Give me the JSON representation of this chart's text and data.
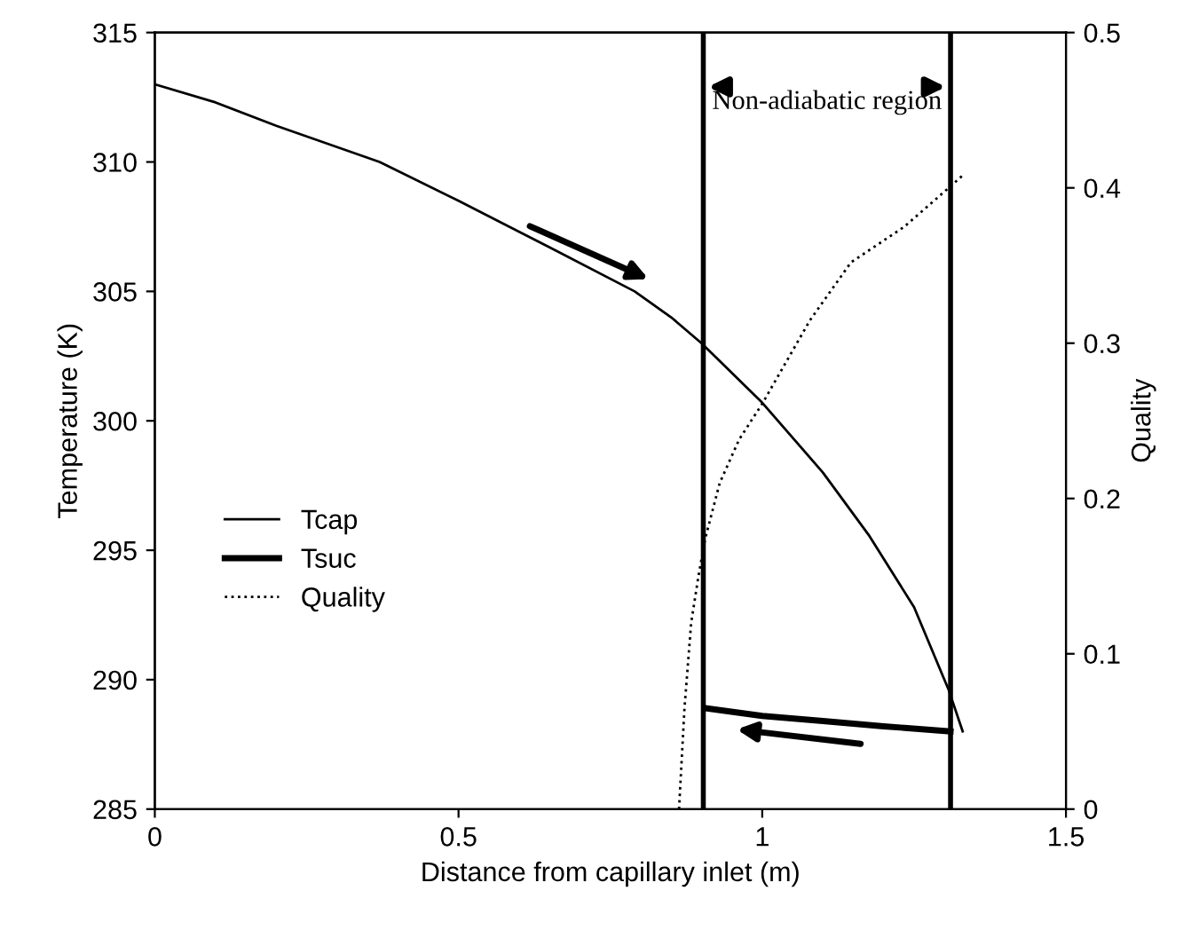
{
  "chart_data": {
    "type": "line",
    "xlabel": "Distance from capillary inlet (m)",
    "ylabel": "Temperature (K)",
    "y2label": "Quality",
    "xlim": [
      0,
      1.5
    ],
    "xticks": [
      0,
      0.5,
      1,
      1.5
    ],
    "ylim": [
      285,
      315
    ],
    "yticks": [
      285,
      290,
      295,
      300,
      305,
      310,
      315
    ],
    "y2lim": [
      0,
      0.5
    ],
    "y2ticks": [
      0,
      0.1,
      0.2,
      0.3,
      0.4,
      0.5
    ],
    "grid": false,
    "legend": "left",
    "series": [
      {
        "name": "Tcap",
        "color": "#000000",
        "line_style": "solid",
        "x": [
          0,
          0.1,
          0.2,
          0.37,
          0.5,
          0.65,
          0.79,
          0.85,
          0.9,
          1.0,
          1.1,
          1.175,
          1.25,
          1.307,
          1.33
        ],
        "values": [
          313,
          312.3,
          311.4,
          310,
          308.5,
          306.7,
          305,
          304,
          303,
          300.7,
          298,
          295.6,
          292.8,
          289.6,
          288
        ]
      },
      {
        "name": "Tsuc",
        "color": "#000000",
        "line_style": "solid",
        "x": [
          0.906,
          1.0,
          1.1,
          1.2,
          1.31
        ],
        "values": [
          288.9,
          288.6,
          288.4,
          288.2,
          288.0
        ]
      },
      {
        "name": "Quality",
        "color": "#000000",
        "line_style": "dotted",
        "axis": "y2",
        "x": [
          0.863,
          0.872,
          0.883,
          0.895,
          0.906,
          0.93,
          0.962,
          1.0,
          1.079,
          1.146,
          1.234,
          1.307,
          1.33
        ],
        "values": [
          0,
          0.065,
          0.12,
          0.15,
          0.174,
          0.21,
          0.238,
          0.261,
          0.315,
          0.352,
          0.375,
          0.4,
          0.408
        ]
      }
    ],
    "ref_lines": [
      {
        "axis": "x",
        "value": 0.903,
        "color": "#000000",
        "line_style": "solid"
      },
      {
        "axis": "x",
        "value": 1.31,
        "color": "#000000",
        "line_style": "solid"
      }
    ],
    "annotations": [
      "Non-adiabatic region"
    ]
  }
}
